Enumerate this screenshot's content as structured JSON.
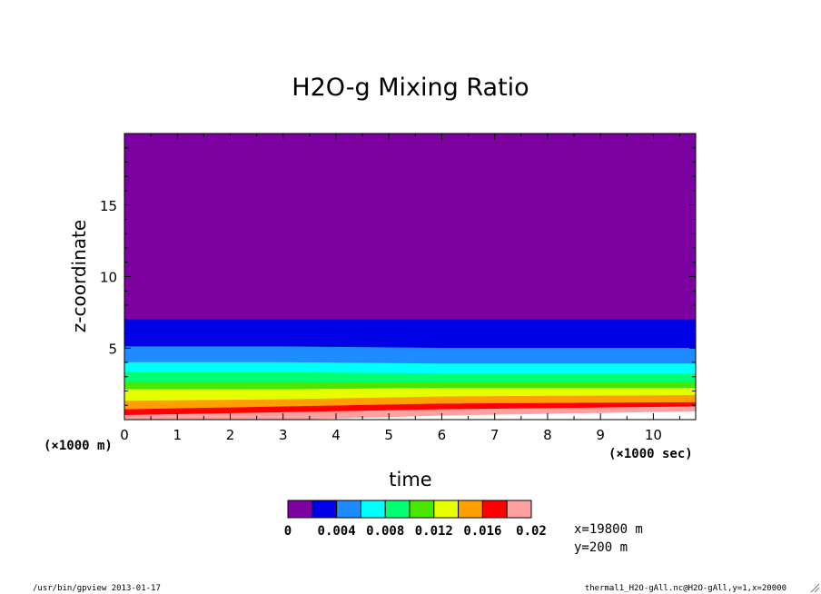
{
  "chart_data": {
    "type": "heatmap",
    "title": "H2O-g Mixing Ratio",
    "xlabel": "time",
    "ylabel": "z-coordinate",
    "x_unit": "(×1000 sec)",
    "y_unit": "(×1000 m)",
    "xlim": [
      0,
      10.8
    ],
    "ylim": [
      0,
      20
    ],
    "x_ticks": [
      0,
      1,
      2,
      3,
      4,
      5,
      6,
      7,
      8,
      9,
      10
    ],
    "y_ticks": [
      5,
      10,
      15
    ],
    "levels": [
      0,
      0.002,
      0.004,
      0.006,
      0.008,
      0.01,
      0.012,
      0.014,
      0.016,
      0.018,
      0.02
    ],
    "level_colors": [
      "#7d00a0",
      "#0000e6",
      "#1e8cff",
      "#00ffff",
      "#00ff73",
      "#4be600",
      "#e6ff00",
      "#ffa000",
      "#ff0000",
      "#ffa0a0"
    ],
    "colorbar_labels": [
      "0",
      "0.004",
      "0.008",
      "0.012",
      "0.016",
      "0.02"
    ],
    "contours": {
      "x": [
        0,
        3,
        6,
        10.8
      ],
      "boundaries": [
        {
          "level": 0.002,
          "z": [
            7.0,
            7.0,
            7.0,
            7.0
          ]
        },
        {
          "level": 0.004,
          "z": [
            5.1,
            5.1,
            5.0,
            5.0
          ]
        },
        {
          "level": 0.006,
          "z": [
            4.0,
            4.0,
            3.9,
            3.9
          ]
        },
        {
          "level": 0.008,
          "z": [
            3.3,
            3.3,
            3.2,
            3.2
          ]
        },
        {
          "level": 0.01,
          "z": [
            2.6,
            2.6,
            2.6,
            2.6
          ]
        },
        {
          "level": 0.012,
          "z": [
            2.1,
            2.1,
            2.2,
            2.2
          ]
        },
        {
          "level": 0.014,
          "z": [
            1.3,
            1.4,
            1.6,
            1.7
          ]
        },
        {
          "level": 0.016,
          "z": [
            0.7,
            0.9,
            1.1,
            1.2
          ]
        },
        {
          "level": 0.018,
          "z": [
            0.3,
            0.5,
            0.7,
            0.9
          ]
        },
        {
          "level": 0.02,
          "z": [
            0.0,
            0.0,
            0.3,
            0.6
          ]
        }
      ]
    }
  },
  "info": {
    "x_pos": "x=19800 m",
    "y_pos": "y=200 m"
  },
  "footer": {
    "left": "/usr/bin/gpview  2013-01-17",
    "right": "thermal1_H2O-gAll.nc@H2O-gAll,y=1,x=20000"
  }
}
